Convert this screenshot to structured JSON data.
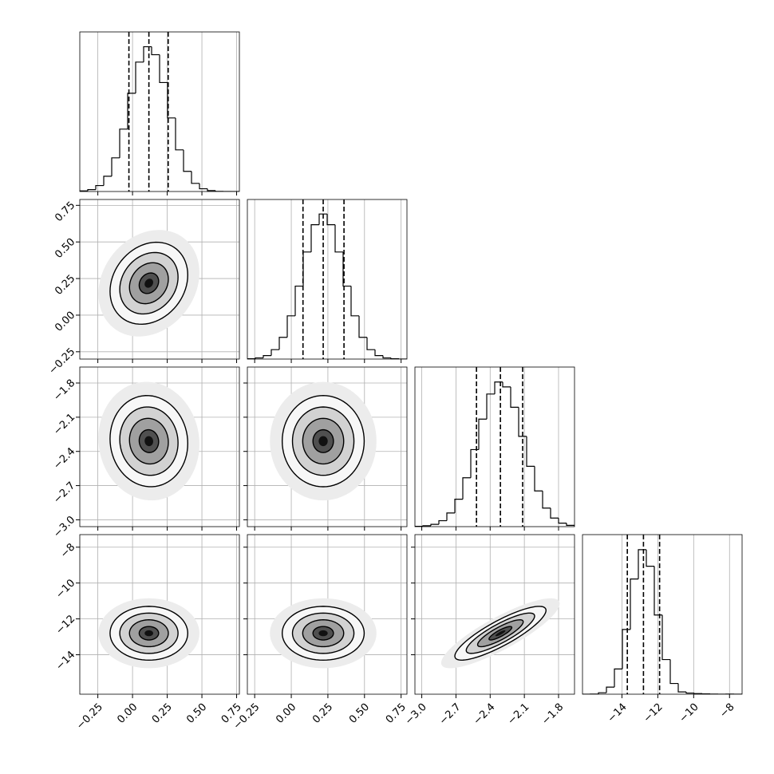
{
  "chart_data": [
    {
      "type": "histogram",
      "xlim": [
        -0.38,
        0.77
      ],
      "ylim": [
        0,
        1100
      ],
      "bins": [
        -0.38,
        -0.3225,
        -0.265,
        -0.2075,
        -0.15,
        -0.0925,
        -0.035,
        0.0225,
        0.08,
        0.1375,
        0.195,
        0.2525,
        0.31,
        0.3675,
        0.425,
        0.4825,
        0.54,
        0.5975,
        0.655,
        0.7125,
        0.77
      ],
      "counts": [
        4,
        13,
        41,
        105,
        232,
        430,
        677,
        892,
        998,
        943,
        751,
        507,
        287,
        139,
        56,
        19,
        6,
        1,
        0,
        0
      ],
      "quantiles": [
        -0.026,
        0.118,
        0.257
      ]
    },
    {
      "type": "contour",
      "xlim": [
        -0.38,
        0.77
      ],
      "ylim": [
        -0.3,
        0.79
      ],
      "mean": [
        0.118,
        0.218
      ],
      "std": [
        0.14,
        0.14
      ],
      "correlation": 0.2,
      "yticks": [
        {
          "value": -0.25,
          "label": "−0.25"
        },
        {
          "value": 0,
          "label": "0.00"
        },
        {
          "value": 0.25,
          "label": "0.25"
        },
        {
          "value": 0.5,
          "label": "0.50"
        },
        {
          "value": 0.75,
          "label": "0.75"
        }
      ]
    },
    {
      "type": "histogram",
      "xlim": [
        -0.3,
        0.79
      ],
      "ylim": [
        0,
        1100
      ],
      "bins": [
        -0.3,
        -0.2455,
        -0.191,
        -0.1365,
        -0.082,
        -0.0275,
        0.027,
        0.0815,
        0.136,
        0.1905,
        0.245,
        0.2995,
        0.354,
        0.4085,
        0.463,
        0.5175,
        0.572,
        0.6265,
        0.681,
        0.7355,
        0.79
      ],
      "counts": [
        2,
        8,
        24,
        65,
        150,
        298,
        503,
        738,
        926,
        1000,
        926,
        738,
        503,
        298,
        150,
        65,
        24,
        8,
        2,
        0
      ],
      "quantiles": [
        0.08,
        0.218,
        0.36
      ]
    },
    {
      "type": "contour",
      "xlim": [
        -0.38,
        0.77
      ],
      "ylim": [
        -3.06,
        -1.66
      ],
      "mean": [
        0.118,
        -2.31
      ],
      "std": [
        0.14,
        0.2
      ],
      "correlation": -0.05,
      "yticks": [
        {
          "value": -3.0,
          "label": "−3.0"
        },
        {
          "value": -2.7,
          "label": "−2.7"
        },
        {
          "value": -2.4,
          "label": "−2.4"
        },
        {
          "value": -2.1,
          "label": "−2.1"
        },
        {
          "value": -1.8,
          "label": "−1.8"
        }
      ]
    },
    {
      "type": "contour",
      "xlim": [
        -0.3,
        0.79
      ],
      "ylim": [
        -3.06,
        -1.66
      ],
      "mean": [
        0.218,
        -2.31
      ],
      "std": [
        0.14,
        0.2
      ],
      "correlation": 0
    },
    {
      "type": "histogram",
      "xlim": [
        -3.06,
        -1.66
      ],
      "ylim": [
        0,
        1100
      ],
      "bins": [
        -3.06,
        -2.99,
        -2.92,
        -2.85,
        -2.78,
        -2.71,
        -2.64,
        -2.57,
        -2.5,
        -2.43,
        -2.36,
        -2.29,
        -2.22,
        -2.15,
        -2.08,
        -2.01,
        -1.94,
        -1.87,
        -1.8,
        -1.73,
        -1.66
      ],
      "counts": [
        2,
        6,
        16,
        41,
        94,
        189,
        337,
        531,
        741,
        914,
        997,
        963,
        823,
        622,
        416,
        246,
        128,
        59,
        24,
        9
      ],
      "quantiles": [
        -2.52,
        -2.31,
        -2.115
      ]
    },
    {
      "type": "contour",
      "xlim": [
        -0.38,
        0.77
      ],
      "ylim": [
        -16.2,
        -7.3
      ],
      "mean": [
        0.118,
        -12.8
      ],
      "std": [
        0.14,
        0.75
      ],
      "correlation": 0,
      "xticks": [
        {
          "value": -0.25,
          "label": "−0.25"
        },
        {
          "value": 0,
          "label": "0.00"
        },
        {
          "value": 0.25,
          "label": "0.25"
        },
        {
          "value": 0.5,
          "label": "0.50"
        },
        {
          "value": 0.75,
          "label": "0.75"
        }
      ],
      "yticks": [
        {
          "value": -14,
          "label": "−14"
        },
        {
          "value": -12,
          "label": "−12"
        },
        {
          "value": -10,
          "label": "−10"
        },
        {
          "value": -8,
          "label": "−8"
        }
      ]
    },
    {
      "type": "contour",
      "xlim": [
        -0.3,
        0.79
      ],
      "ylim": [
        -16.2,
        -7.3
      ],
      "mean": [
        0.218,
        -12.8
      ],
      "std": [
        0.14,
        0.75
      ],
      "correlation": 0,
      "xticks": [
        {
          "value": -0.25,
          "label": "−0.25"
        },
        {
          "value": 0,
          "label": "0.00"
        },
        {
          "value": 0.25,
          "label": "0.25"
        },
        {
          "value": 0.5,
          "label": "0.50"
        },
        {
          "value": 0.75,
          "label": "0.75"
        }
      ]
    },
    {
      "type": "contour",
      "xlim": [
        -3.06,
        -1.66
      ],
      "ylim": [
        -16.2,
        -7.3
      ],
      "mean": [
        -2.31,
        -12.8
      ],
      "std": [
        0.2,
        0.75
      ],
      "correlation": 0.85,
      "xticks": [
        {
          "value": -3.0,
          "label": "−3.0"
        },
        {
          "value": -2.7,
          "label": "−2.7"
        },
        {
          "value": -2.4,
          "label": "−2.4"
        },
        {
          "value": -2.1,
          "label": "−2.1"
        },
        {
          "value": -1.8,
          "label": "−1.8"
        }
      ]
    },
    {
      "type": "histogram",
      "xlim": [
        -16.2,
        -7.3
      ],
      "ylim": [
        0,
        1100
      ],
      "bins": [
        -16.2,
        -15.755,
        -15.31,
        -14.865,
        -14.42,
        -13.975,
        -13.53,
        -13.085,
        -12.64,
        -12.195,
        -11.75,
        -11.305,
        -10.86,
        -10.415,
        -9.97,
        -9.525,
        -9.08,
        -8.635,
        -8.19,
        -7.745,
        -7.3
      ],
      "counts": [
        0,
        1,
        10,
        49,
        174,
        446,
        794,
        996,
        882,
        546,
        239,
        74,
        16,
        8,
        4,
        2,
        1,
        0,
        1,
        0
      ],
      "quantiles": [
        -13.7,
        -12.8,
        -11.9
      ],
      "xticks": [
        {
          "value": -14,
          "label": "−14"
        },
        {
          "value": -12,
          "label": "−12"
        },
        {
          "value": -10,
          "label": "−10"
        },
        {
          "value": -8,
          "label": "−8"
        }
      ]
    }
  ]
}
